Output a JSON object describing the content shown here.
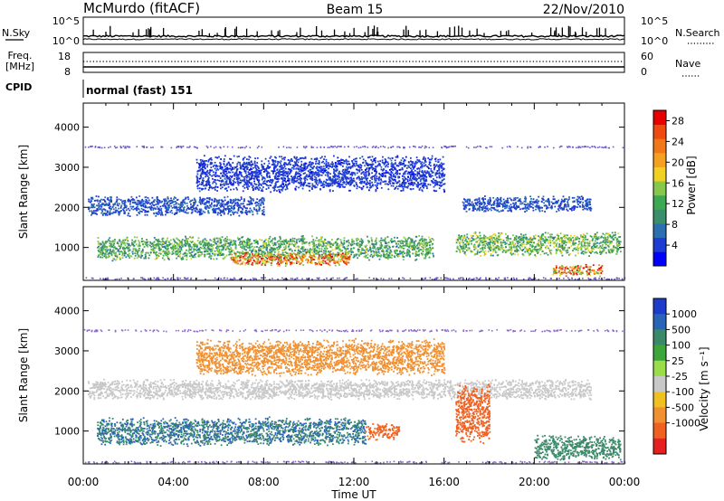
{
  "header": {
    "station": "McMurdo (fitACF)",
    "beam": "Beam 15",
    "date": "22/Nov/2010"
  },
  "panels": {
    "nsky": {
      "left_label": "N.Sky",
      "ticks_left": [
        "10^5",
        "10^0"
      ],
      "ticks_right": [
        "10^5",
        "10^0"
      ],
      "right_label": "N.Search"
    },
    "freq": {
      "left_label_1": "Freq.",
      "left_label_2": "[MHz]",
      "ticks_left": [
        "18",
        "8"
      ],
      "ticks_right": [
        "60",
        "0"
      ],
      "right_label": "Nave"
    },
    "cpid": {
      "label": "CPID",
      "value": "normal (fast) 151"
    }
  },
  "chart_data": [
    {
      "type": "heatmap",
      "title": "",
      "xlabel": "",
      "ylabel": "Slant Range [km]",
      "x_ticks": [
        "00:00",
        "04:00",
        "08:00",
        "12:00",
        "16:00",
        "20:00",
        "00:00"
      ],
      "xlim_hours": [
        0,
        24
      ],
      "y_ticks": [
        1000,
        2000,
        3000,
        4000
      ],
      "ylim": [
        180,
        4600
      ],
      "colorbar": {
        "label": "Power [dB]",
        "ticks": [
          4,
          8,
          12,
          16,
          20,
          24,
          28
        ],
        "range": [
          0,
          30
        ],
        "colors": [
          "#0000ff",
          "#1e3cd2",
          "#2a6fb0",
          "#3a8f6a",
          "#3ea852",
          "#86c84a",
          "#f0d020",
          "#f4a020",
          "#f07818",
          "#ee4a12",
          "#e60000"
        ]
      },
      "bands": [
        {
          "range_km": [
            700,
            1300
          ],
          "hours": [
            0.6,
            15.5
          ],
          "level": 12
        },
        {
          "range_km": [
            550,
            900
          ],
          "hours": [
            6.5,
            11.8
          ],
          "level": 22
        },
        {
          "range_km": [
            1800,
            2300
          ],
          "hours": [
            0.2,
            8.0
          ],
          "level": 5
        },
        {
          "range_km": [
            1900,
            2300
          ],
          "hours": [
            16.8,
            22.5
          ],
          "level": 5
        },
        {
          "range_km": [
            2400,
            3300
          ],
          "hours": [
            5.0,
            16.0
          ],
          "level": 4
        },
        {
          "range_km": [
            800,
            1400
          ],
          "hours": [
            16.5,
            23.8
          ],
          "level": 13
        },
        {
          "range_km": [
            300,
            600
          ],
          "hours": [
            20.8,
            23.0
          ],
          "level": 22
        }
      ],
      "row_ranges_km": [
        3520,
        240
      ]
    },
    {
      "type": "heatmap",
      "title": "",
      "xlabel": "Time UT",
      "ylabel": "Slant Range [km]",
      "x_ticks": [
        "00:00",
        "04:00",
        "08:00",
        "12:00",
        "16:00",
        "20:00",
        "00:00"
      ],
      "xlim_hours": [
        0,
        24
      ],
      "y_ticks": [
        1000,
        2000,
        3000,
        4000
      ],
      "ylim": [
        180,
        4600
      ],
      "colorbar": {
        "label": "Velocity [m s⁻¹]",
        "ticks": [
          1000,
          500,
          100,
          25,
          -25,
          -100,
          -500,
          -1000
        ],
        "colors": [
          "#1e3ccc",
          "#2a64b8",
          "#3a8a6a",
          "#3da63a",
          "#9adc4a",
          "#c8c8c8",
          "#f0c020",
          "#f09030",
          "#f06020",
          "#e62020"
        ]
      },
      "bands": [
        {
          "range_km": [
            650,
            1350
          ],
          "hours": [
            0.6,
            12.5
          ],
          "velocity": 300
        },
        {
          "range_km": [
            800,
            1200
          ],
          "hours": [
            12.5,
            14.0
          ],
          "velocity": -300
        },
        {
          "range_km": [
            1800,
            2300
          ],
          "hours": [
            0.2,
            22.5
          ],
          "velocity": 0
        },
        {
          "range_km": [
            700,
            2200
          ],
          "hours": [
            16.5,
            18.0
          ],
          "velocity": -400
        },
        {
          "range_km": [
            2400,
            3300
          ],
          "hours": [
            5.0,
            16.0
          ],
          "velocity": -100
        },
        {
          "range_km": [
            300,
            900
          ],
          "hours": [
            20.0,
            23.8
          ],
          "velocity": 200
        }
      ],
      "row_ranges_km": [
        3520,
        240
      ]
    }
  ]
}
